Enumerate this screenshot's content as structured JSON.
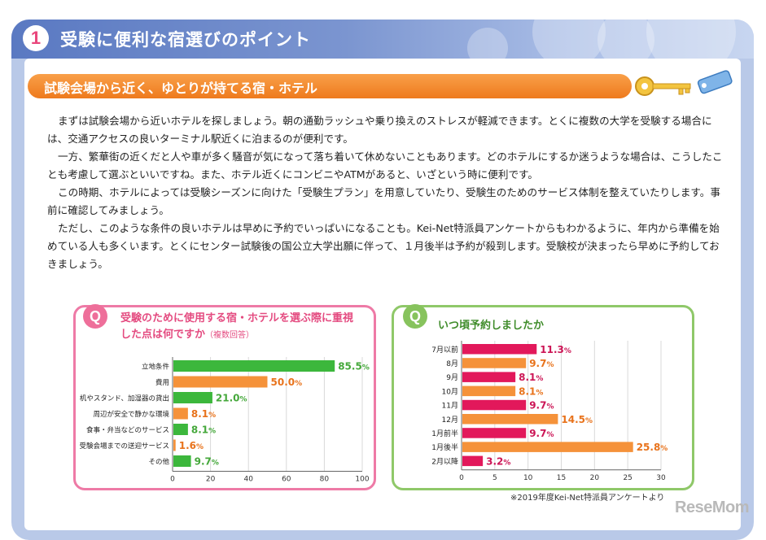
{
  "header": {
    "number": "1",
    "title": "受験に便利な宿選びのポイント"
  },
  "section": {
    "subtitle": "試験会場から近く、ゆとりが持てる宿・ホテル"
  },
  "body": {
    "paragraphs": [
      "まずは試験会場から近いホテルを探しましょう。朝の通勤ラッシュや乗り換えのストレスが軽減できます。とくに複数の大学を受験する場合には、交通アクセスの良いターミナル駅近くに泊まるのが便利です。",
      "一方、繁華街の近くだと人や車が多く騒音が気になって落ち着いて休めないこともあります。どのホテルにするか迷うような場合は、こうしたことも考慮して選ぶといいですね。また、ホテル近くにコンビニやATMがあると、いざという時に便利です。",
      "この時期、ホテルによっては受験シーズンに向けた「受験生プラン」を用意していたり、受験生のためのサービス体制を整えていたりします。事前に確認してみましょう。",
      "ただし、このような条件の良いホテルは早めに予約でいっぱいになることも。Kei-Net特派員アンケートからもわかるように、年内から準備を始めている人も多くいます。とくにセンター試験後の国公立大学出願に伴って、１月後半は予約が殺到します。受験校が決まったら早めに予約しておきましょう。"
    ]
  },
  "left_card": {
    "q_label": "Q",
    "title": "受験のために使用する宿・ホテルを選ぶ際に重視した点は何ですか",
    "title_note": "（複数回答）"
  },
  "right_card": {
    "q_label": "Q",
    "title": "いつ頃予約しましたか"
  },
  "footer": {
    "note": "※2019年度Kei-Net特派員アンケートより",
    "brand": "ReseMom"
  },
  "colors": {
    "green": "#3cb73c",
    "orange": "#f5923a",
    "crimson": "#e2185b",
    "pink_border": "#ee7aa6",
    "green_border": "#8fc869",
    "value_green": "#45a83b",
    "value_orange": "#e8731c",
    "value_crimson": "#cc1656"
  },
  "chart_data": [
    {
      "type": "bar",
      "orientation": "horizontal",
      "title": "受験のために使用する宿・ホテルを選ぶ際に重視した点は何ですか（複数回答）",
      "categories": [
        "立地条件",
        "費用",
        "机やスタンド、加湿器の貸出",
        "周辺が安全で静かな環境",
        "食事・弁当などのサービス",
        "受験会場までの送迎サービス",
        "その他"
      ],
      "values": [
        85.5,
        50.0,
        21.0,
        8.1,
        8.1,
        1.6,
        9.7
      ],
      "value_labels": [
        "85.5",
        "50.0",
        "21.0",
        "8.1",
        "8.1",
        "1.6",
        "9.7"
      ],
      "unit": "%",
      "xlim": [
        0,
        100
      ],
      "xticks": [
        "0",
        "20",
        "40",
        "60",
        "80",
        "100"
      ]
    },
    {
      "type": "bar",
      "orientation": "horizontal",
      "title": "いつ頃予約しましたか",
      "categories": [
        "7月以前",
        "8月",
        "9月",
        "10月",
        "11月",
        "12月",
        "1月前半",
        "1月後半",
        "2月以降"
      ],
      "values": [
        11.3,
        9.7,
        8.1,
        8.1,
        9.7,
        14.5,
        9.7,
        25.8,
        3.2
      ],
      "value_labels": [
        "11.3",
        "9.7",
        "8.1",
        "8.1",
        "9.7",
        "14.5",
        "9.7",
        "25.8",
        "3.2"
      ],
      "unit": "%",
      "xlim": [
        0,
        30
      ],
      "xticks": [
        "0",
        "5",
        "10",
        "15",
        "20",
        "25",
        "30"
      ]
    }
  ]
}
